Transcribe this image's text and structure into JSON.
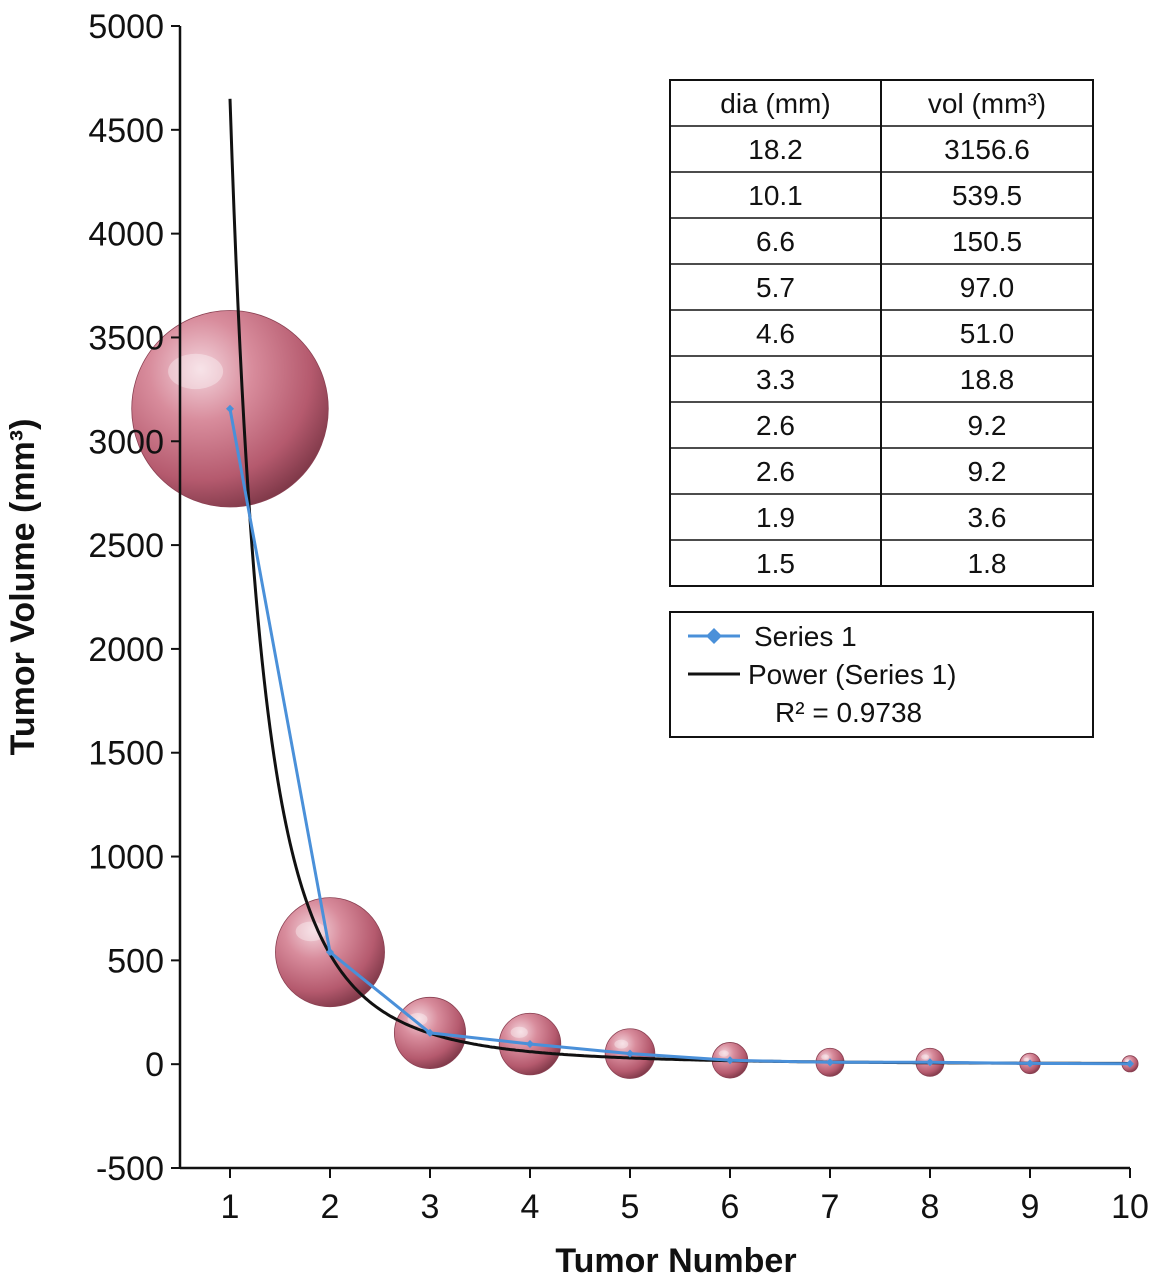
{
  "chart_data": {
    "type": "line",
    "xlabel": "Tumor Number",
    "ylabel": "Tumor Volume (mm³)",
    "x": [
      1,
      2,
      3,
      4,
      5,
      6,
      7,
      8,
      9,
      10
    ],
    "xlim": [
      0.5,
      10
    ],
    "ylim": [
      -500,
      5000
    ],
    "x_ticks": [
      "1",
      "2",
      "3",
      "4",
      "5",
      "6",
      "7",
      "8",
      "9",
      "10"
    ],
    "y_ticks": [
      "5000",
      "4500",
      "4000",
      "3500",
      "3000",
      "2500",
      "2000",
      "1500",
      "1000",
      "500",
      "0",
      "-500"
    ],
    "series": [
      {
        "name": "Series 1",
        "color": "#4a90d9",
        "values": [
          3156.6,
          539.5,
          150.5,
          97.0,
          51.0,
          18.8,
          9.2,
          9.2,
          3.6,
          1.8
        ]
      }
    ],
    "trendline": {
      "name": "Power (Series 1)",
      "color": "#111111",
      "type": "power",
      "r2_label": "R² = 0.9738"
    },
    "tumor_diameters_mm": [
      18.2,
      10.1,
      6.6,
      5.7,
      4.6,
      3.3,
      2.6,
      2.6,
      1.9,
      1.5
    ],
    "table": {
      "headers": [
        "dia (mm)",
        "vol (mm³)"
      ],
      "rows": [
        [
          "18.2",
          "3156.6"
        ],
        [
          "10.1",
          "539.5"
        ],
        [
          "6.6",
          "150.5"
        ],
        [
          "5.7",
          "97.0"
        ],
        [
          "4.6",
          "51.0"
        ],
        [
          "3.3",
          "18.8"
        ],
        [
          "2.6",
          "9.2"
        ],
        [
          "2.6",
          "9.2"
        ],
        [
          "1.9",
          "3.6"
        ],
        [
          "1.5",
          "1.8"
        ]
      ]
    },
    "legend": {
      "placement": "right",
      "entries": [
        "Series 1",
        "Power (Series 1)"
      ],
      "r2": "R² = 0.9738"
    },
    "grid": false,
    "sphere_color": "#c9707f"
  }
}
